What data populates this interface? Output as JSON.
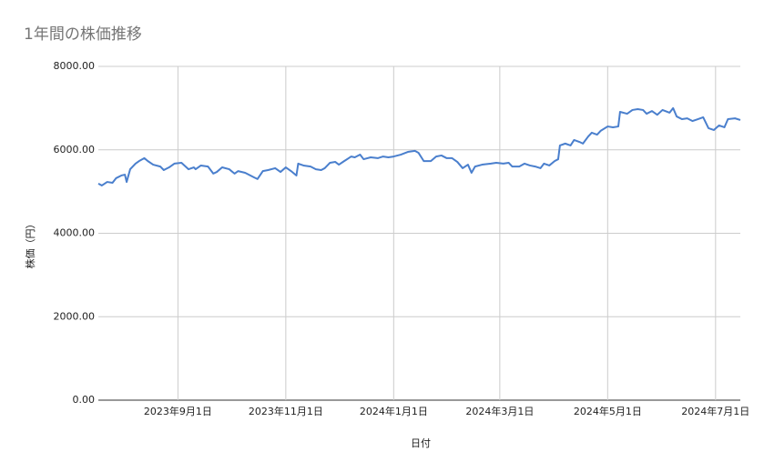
{
  "chart_data": {
    "type": "line",
    "title": "1年間の株価推移",
    "x_label": "日付",
    "y_label": "株価（円）",
    "x": [
      "2023-07-18",
      "2023-07-20",
      "2023-07-23",
      "2023-07-26",
      "2023-07-28",
      "2023-07-31",
      "2023-08-02",
      "2023-08-03",
      "2023-08-05",
      "2023-08-08",
      "2023-08-10",
      "2023-08-13",
      "2023-08-15",
      "2023-08-18",
      "2023-08-22",
      "2023-08-24",
      "2023-08-27",
      "2023-08-30",
      "2023-09-03",
      "2023-09-07",
      "2023-09-10",
      "2023-09-11",
      "2023-09-14",
      "2023-09-18",
      "2023-09-21",
      "2023-09-23",
      "2023-09-26",
      "2023-09-30",
      "2023-10-03",
      "2023-10-05",
      "2023-10-09",
      "2023-10-14",
      "2023-10-16",
      "2023-10-19",
      "2023-10-22",
      "2023-10-26",
      "2023-10-29",
      "2023-11-01",
      "2023-11-04",
      "2023-11-07",
      "2023-11-08",
      "2023-11-11",
      "2023-11-15",
      "2023-11-18",
      "2023-11-21",
      "2023-11-23",
      "2023-11-26",
      "2023-11-29",
      "2023-12-01",
      "2023-12-04",
      "2023-12-08",
      "2023-12-10",
      "2023-12-13",
      "2023-12-15",
      "2023-12-19",
      "2023-12-23",
      "2023-12-26",
      "2023-12-29",
      "2024-01-01",
      "2024-01-05",
      "2024-01-09",
      "2024-01-13",
      "2024-01-15",
      "2024-01-18",
      "2024-01-22",
      "2024-01-25",
      "2024-01-28",
      "2024-01-31",
      "2024-02-03",
      "2024-02-06",
      "2024-02-09",
      "2024-02-12",
      "2024-02-14",
      "2024-02-16",
      "2024-02-20",
      "2024-02-25",
      "2024-02-28",
      "2024-03-03",
      "2024-03-06",
      "2024-03-08",
      "2024-03-12",
      "2024-03-15",
      "2024-03-18",
      "2024-03-21",
      "2024-03-24",
      "2024-03-26",
      "2024-03-29",
      "2024-04-01",
      "2024-04-03",
      "2024-04-04",
      "2024-04-07",
      "2024-04-10",
      "2024-04-12",
      "2024-04-15",
      "2024-04-17",
      "2024-04-20",
      "2024-04-22",
      "2024-04-25",
      "2024-04-27",
      "2024-05-01",
      "2024-05-04",
      "2024-05-07",
      "2024-05-08",
      "2024-05-12",
      "2024-05-15",
      "2024-05-18",
      "2024-05-21",
      "2024-05-23",
      "2024-05-26",
      "2024-05-29",
      "2024-06-01",
      "2024-06-05",
      "2024-06-07",
      "2024-06-09",
      "2024-06-12",
      "2024-06-15",
      "2024-06-18",
      "2024-06-21",
      "2024-06-24",
      "2024-06-27",
      "2024-06-30",
      "2024-07-03",
      "2024-07-06",
      "2024-07-08",
      "2024-07-12",
      "2024-07-15"
    ],
    "series": [
      {
        "name": "株価",
        "color": "#4a7fcd",
        "values": [
          5190,
          5145,
          5230,
          5210,
          5320,
          5385,
          5405,
          5230,
          5535,
          5670,
          5730,
          5800,
          5730,
          5645,
          5600,
          5515,
          5580,
          5670,
          5690,
          5535,
          5580,
          5535,
          5625,
          5600,
          5430,
          5470,
          5580,
          5535,
          5430,
          5490,
          5450,
          5340,
          5300,
          5490,
          5515,
          5560,
          5470,
          5580,
          5490,
          5385,
          5670,
          5625,
          5600,
          5535,
          5515,
          5560,
          5690,
          5710,
          5645,
          5730,
          5840,
          5820,
          5885,
          5775,
          5820,
          5800,
          5840,
          5820,
          5840,
          5885,
          5950,
          5975,
          5930,
          5730,
          5730,
          5840,
          5865,
          5800,
          5800,
          5710,
          5560,
          5645,
          5450,
          5600,
          5645,
          5670,
          5690,
          5670,
          5690,
          5600,
          5600,
          5670,
          5625,
          5600,
          5560,
          5670,
          5625,
          5730,
          5775,
          6105,
          6150,
          6105,
          6235,
          6190,
          6150,
          6320,
          6410,
          6365,
          6455,
          6560,
          6540,
          6560,
          6910,
          6865,
          6955,
          6975,
          6955,
          6865,
          6930,
          6840,
          6955,
          6890,
          7000,
          6800,
          6735,
          6755,
          6690,
          6735,
          6780,
          6520,
          6475,
          6585,
          6540,
          6735,
          6755,
          6715
        ]
      }
    ],
    "xlim": [
      "2023-07-18",
      "2024-07-15"
    ],
    "xticks": [
      {
        "value": "2023-09-01",
        "label": "2023年9月1日"
      },
      {
        "value": "2023-11-01",
        "label": "2023年11月1日"
      },
      {
        "value": "2024-01-01",
        "label": "2024年1月1日"
      },
      {
        "value": "2024-03-01",
        "label": "2024年3月1日"
      },
      {
        "value": "2024-05-01",
        "label": "2024年5月1日"
      },
      {
        "value": "2024-07-01",
        "label": "2024年7月1日"
      }
    ],
    "ylim": [
      0,
      8000
    ],
    "yticks": [
      {
        "value": 0,
        "label": "0.00"
      },
      {
        "value": 2000,
        "label": "2000.00"
      },
      {
        "value": 4000,
        "label": "4000.00"
      },
      {
        "value": 6000,
        "label": "6000.00"
      },
      {
        "value": 8000,
        "label": "8000.00"
      }
    ],
    "grid": true
  }
}
